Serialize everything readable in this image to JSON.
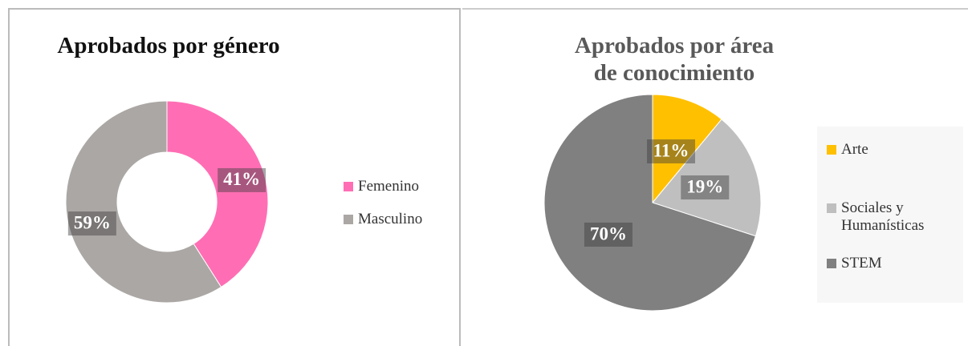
{
  "chart_data": [
    {
      "type": "donut",
      "title": "Aprobados por género",
      "categories": [
        "Femenino",
        "Masculino"
      ],
      "values": [
        41,
        59
      ],
      "value_labels": [
        "41%",
        "59%"
      ],
      "colors": [
        "#ff6eb4",
        "#aba7a5"
      ],
      "legend": "right"
    },
    {
      "type": "pie",
      "title": "Aprobados por área de conocimiento",
      "categories": [
        "Arte",
        "Sociales y Humanísticas",
        "STEM"
      ],
      "values": [
        11,
        19,
        70
      ],
      "value_labels": [
        "11%",
        "19%",
        "70%"
      ],
      "colors": [
        "#ffc000",
        "#bfbfbf",
        "#808080"
      ],
      "legend": "right"
    }
  ]
}
